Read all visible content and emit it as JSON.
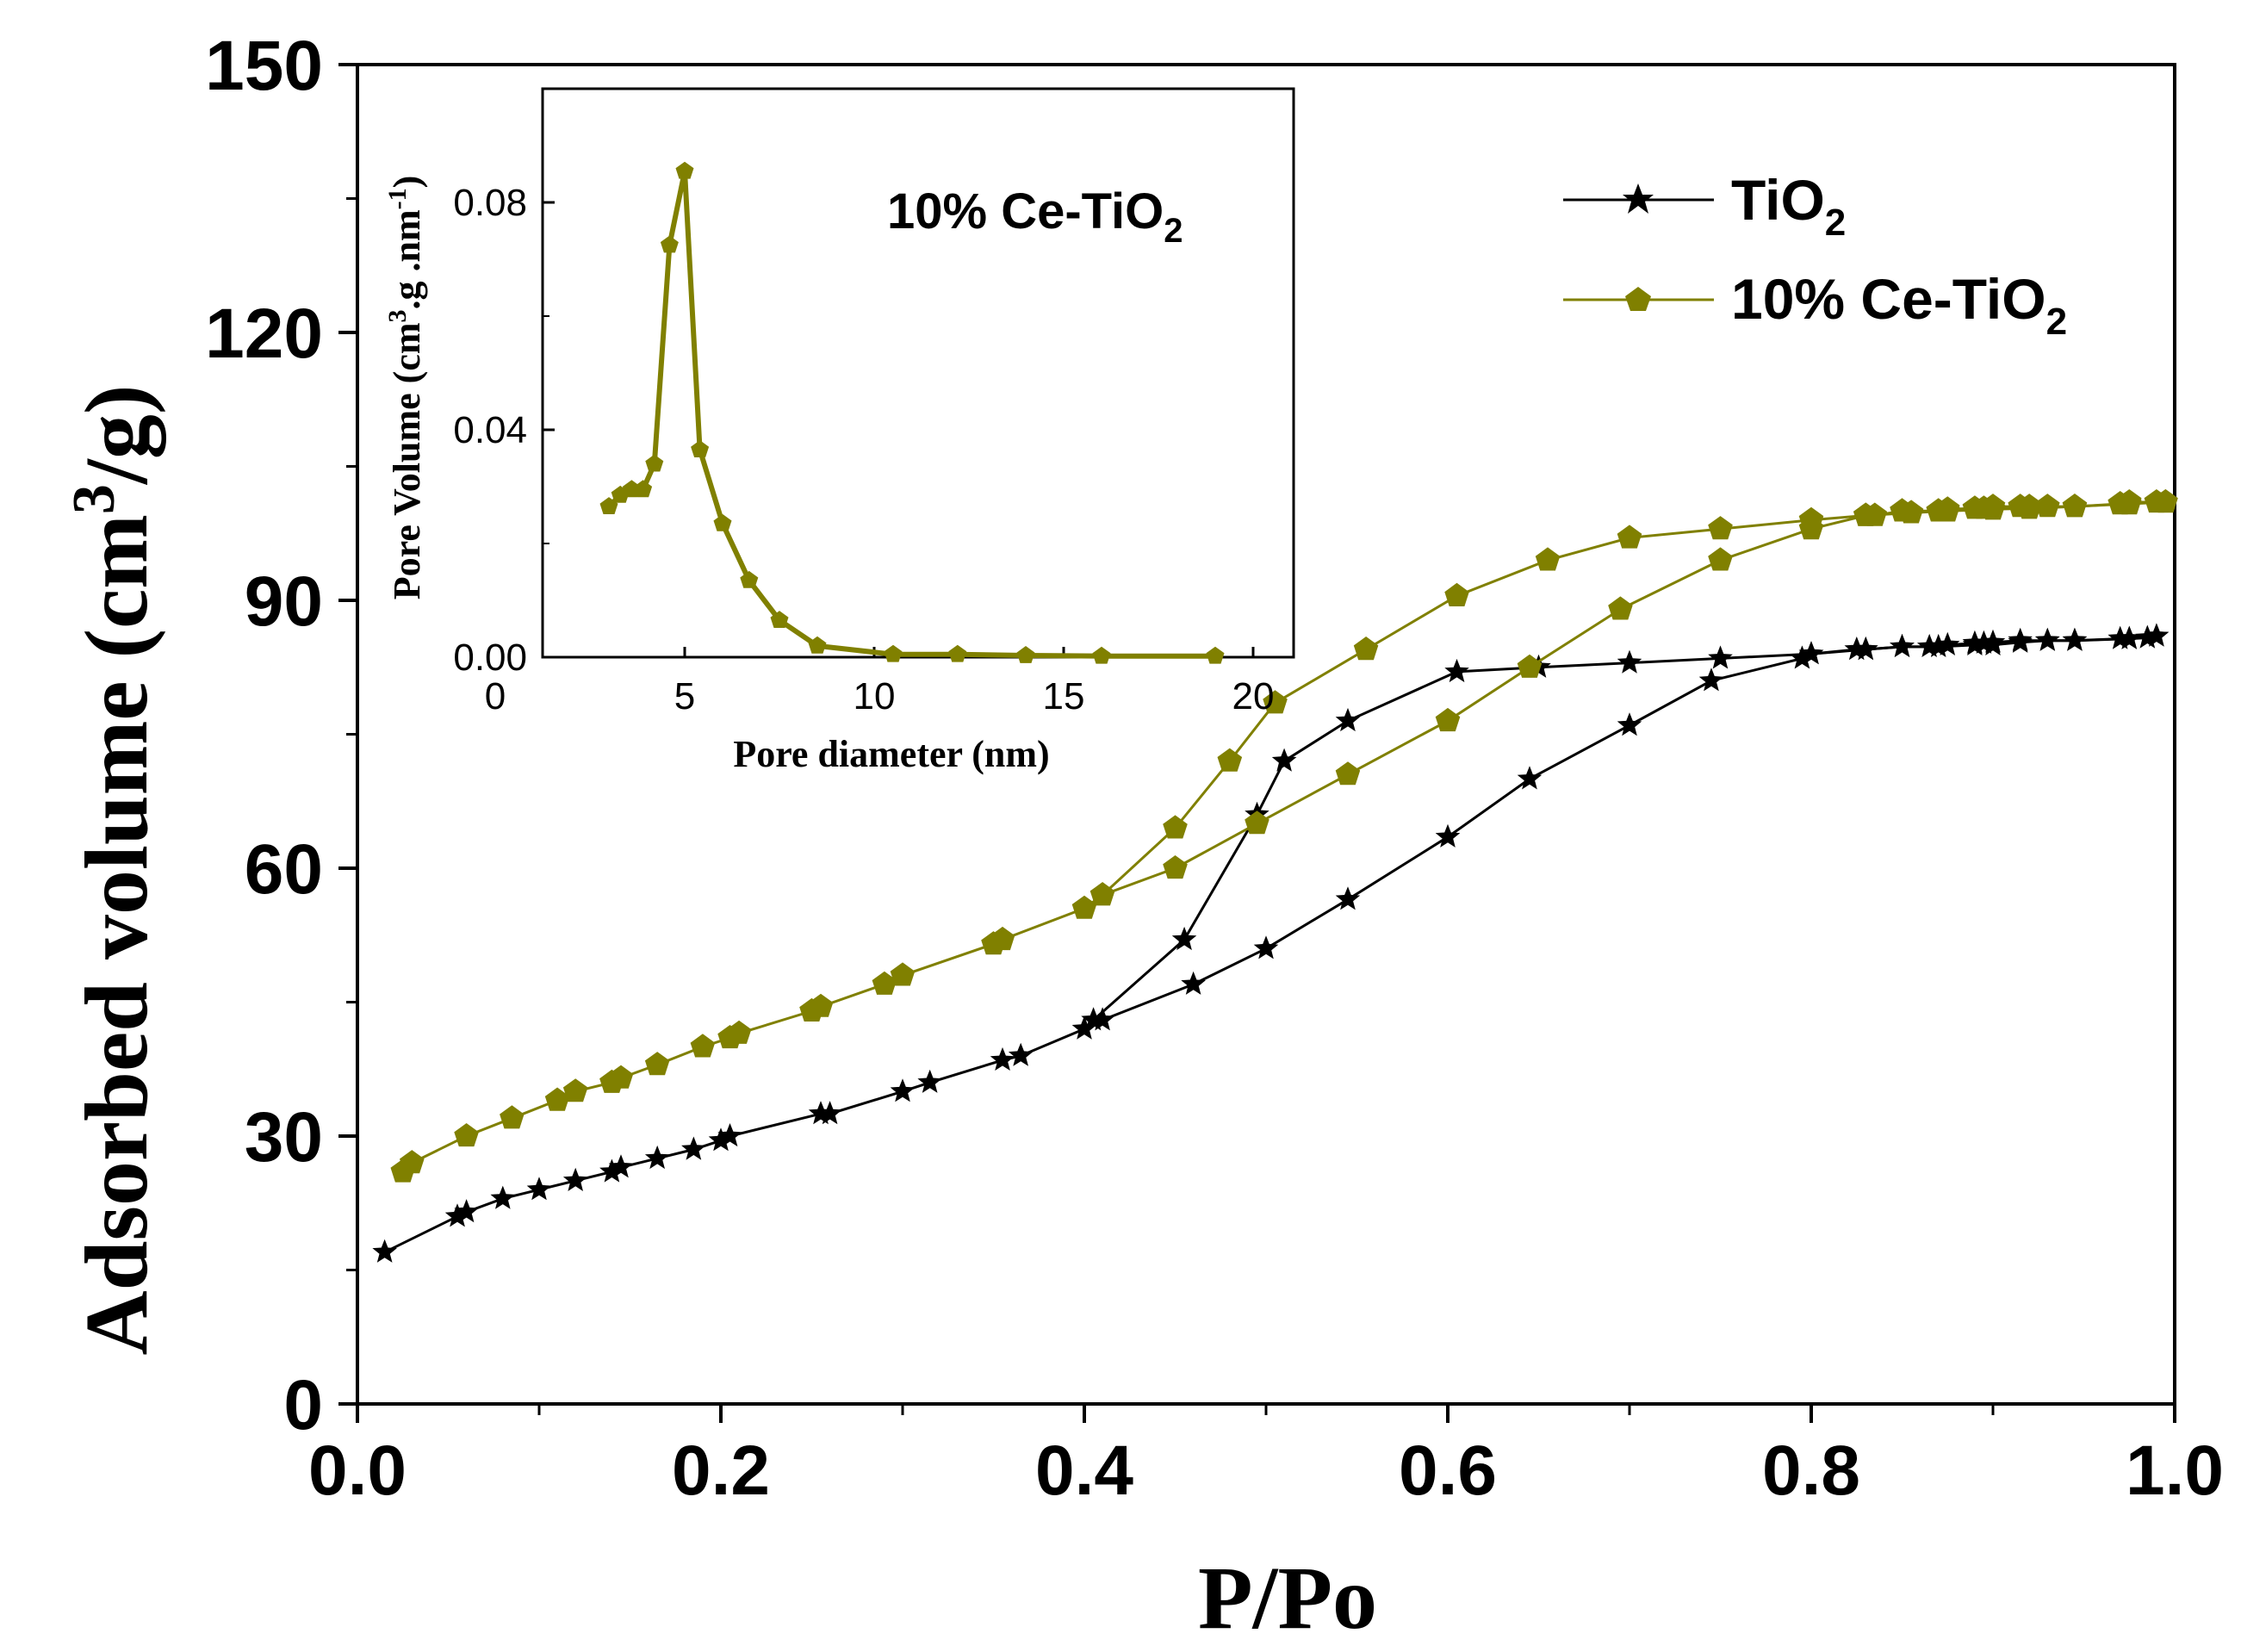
{
  "colors": {
    "tio2": "#000000",
    "ce_tio2": "#808000"
  },
  "icons": {
    "tio2_marker": "star-icon",
    "ce_tio2_marker": "pentagon-icon"
  },
  "chart_data": [
    {
      "type": "line",
      "xlabel": "P/Po",
      "ylabel_main": "Adsorbed volume (cm",
      "ylabel_sup": "3",
      "ylabel_end": "/g)",
      "xlim": [
        0.0,
        1.0
      ],
      "ylim": [
        0,
        150
      ],
      "x_ticks": [
        "0.0",
        "0.2",
        "0.4",
        "0.6",
        "0.8",
        "1.0"
      ],
      "y_ticks": [
        "0",
        "30",
        "60",
        "90",
        "120",
        "150"
      ],
      "grid": false,
      "legend_position": "top-right",
      "series": [
        {
          "name": "TiO",
          "name_sub": "2",
          "marker": "star",
          "x": [
            0.015,
            0.055,
            0.06,
            0.08,
            0.1,
            0.12,
            0.14,
            0.145,
            0.165,
            0.185,
            0.2,
            0.205,
            0.255,
            0.26,
            0.3,
            0.315,
            0.355,
            0.365,
            0.4,
            0.41,
            0.46,
            0.5,
            0.545,
            0.6,
            0.645,
            0.7,
            0.745,
            0.795,
            0.8,
            0.825,
            0.83,
            0.85,
            0.865,
            0.875,
            0.89,
            0.895,
            0.9,
            0.915,
            0.93,
            0.945,
            0.97,
            0.975,
            0.985,
            0.99
          ],
          "y": [
            17,
            21,
            21.5,
            23,
            24,
            25,
            26,
            26.5,
            27.5,
            28.5,
            29.5,
            30,
            32.5,
            32.5,
            35,
            36,
            38.5,
            39,
            42,
            43,
            47,
            51,
            56.5,
            63.5,
            70,
            76,
            81,
            83.5,
            84,
            84.5,
            84.5,
            84.8,
            84.8,
            85,
            85.2,
            85.2,
            85.3,
            85.5,
            85.5,
            85.5,
            85.7,
            85.7,
            85.8,
            86
          ]
        },
        {
          "name": "TiO",
          "name_sub": "2",
          "marker": "star",
          "x": [
            0.99,
            0.975,
            0.945,
            0.93,
            0.915,
            0.9,
            0.89,
            0.87,
            0.85,
            0.83,
            0.8,
            0.75,
            0.7,
            0.65,
            0.605,
            0.545,
            0.51,
            0.495,
            0.455,
            0.405
          ],
          "y": [
            86,
            85.7,
            85.5,
            85.5,
            85.3,
            85,
            85,
            84.8,
            84.8,
            84.5,
            84,
            83.5,
            83,
            82.5,
            82,
            76.5,
            72,
            66,
            52,
            43
          ]
        },
        {
          "name": "10% Ce-TiO",
          "name_sub": "2",
          "marker": "pentagon",
          "x": [
            0.025,
            0.03,
            0.06,
            0.085,
            0.11,
            0.12,
            0.14,
            0.145,
            0.165,
            0.19,
            0.205,
            0.21,
            0.25,
            0.255,
            0.29,
            0.3,
            0.35,
            0.355,
            0.4,
            0.41,
            0.45,
            0.495,
            0.545,
            0.6,
            0.645,
            0.695,
            0.75,
            0.8,
            0.83,
            0.835,
            0.85,
            0.87,
            0.875,
            0.89,
            0.895,
            0.9,
            0.915,
            0.92,
            0.93,
            0.945,
            0.97,
            0.975,
            0.99,
            0.995
          ],
          "y": [
            26,
            27,
            30,
            32,
            34,
            35,
            36,
            36.5,
            38,
            40,
            41,
            41.5,
            44,
            44.5,
            47,
            48,
            51.5,
            52,
            55.5,
            57,
            60,
            65,
            70.5,
            76.5,
            82.5,
            89,
            94.5,
            98,
            99.5,
            99.5,
            100,
            100,
            100.2,
            100.3,
            100.3,
            100.5,
            100.5,
            100.5,
            100.5,
            100.5,
            100.8,
            101,
            101,
            101
          ]
        },
        {
          "name": "10% Ce-TiO",
          "name_sub": "2",
          "marker": "pentagon",
          "x": [
            0.995,
            0.975,
            0.945,
            0.92,
            0.9,
            0.875,
            0.855,
            0.83,
            0.8,
            0.75,
            0.7,
            0.655,
            0.605,
            0.555,
            0.505,
            0.48,
            0.45,
            0.41
          ],
          "y": [
            101,
            100.8,
            100.5,
            100.3,
            100.2,
            100,
            99.8,
            99.5,
            99,
            98,
            97,
            94.5,
            90.5,
            84.5,
            78.5,
            72,
            64.5,
            57
          ]
        }
      ]
    },
    {
      "type": "line",
      "annotation": "10% Ce-TiO",
      "annotation_sub": "2",
      "xlabel": "Pore diameter (nm)",
      "ylabel_main": "Pore Volume (cm",
      "ylabel_sup1": "3",
      "ylabel_mid": ".g .nm",
      "ylabel_sup2": "-1",
      "ylabel_end": ")",
      "xlim": [
        0,
        21
      ],
      "ylim": [
        0,
        0.1
      ],
      "x_ticks": [
        "0",
        "5",
        "10",
        "15",
        "20"
      ],
      "y_ticks": [
        "0.00",
        "0.04",
        "0.08"
      ],
      "series": [
        {
          "name": "10% Ce-TiO2",
          "marker": "pentagon",
          "x": [
            3.0,
            3.3,
            3.6,
            3.9,
            4.2,
            4.6,
            5.0,
            5.4,
            6.0,
            6.7,
            7.5,
            8.5,
            10.5,
            12.2,
            14.0,
            16.0,
            19.0
          ],
          "y": [
            0.0265,
            0.0285,
            0.0295,
            0.0295,
            0.034,
            0.0725,
            0.0855,
            0.0365,
            0.0235,
            0.0135,
            0.0065,
            0.002,
            0.0005,
            0.0005,
            0.0003,
            0.0002,
            0.0002
          ]
        }
      ]
    }
  ]
}
